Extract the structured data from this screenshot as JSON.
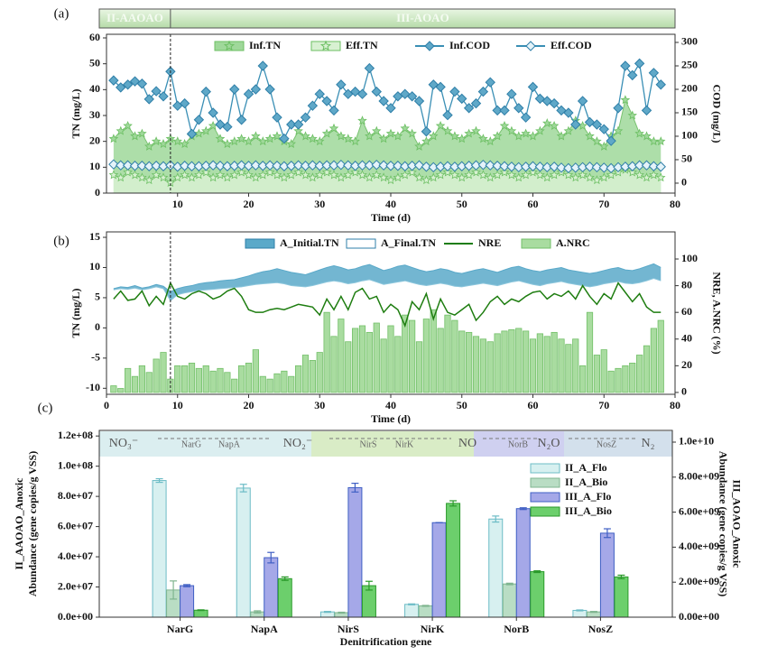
{
  "chart_data": [
    {
      "type": "line",
      "label": "(a)",
      "stages": [
        "II-AAOAO",
        "III-AOAO"
      ],
      "phase_boundary": 9,
      "xlabel": "Time (d)",
      "ylabel": "TN (mg/L)",
      "y2label": "COD (mg/L)",
      "xlim": [
        0,
        80
      ],
      "xticks": [
        10,
        20,
        30,
        40,
        50,
        60,
        70,
        80
      ],
      "ylim": [
        0,
        61.4
      ],
      "yticks": [
        0,
        10,
        20,
        30,
        40,
        50,
        60
      ],
      "y2lim": [
        -21.2,
        317.3
      ],
      "y2ticks": [
        0,
        50,
        100,
        150,
        200,
        250,
        300
      ],
      "x": [
        1,
        2,
        3,
        4,
        5,
        6,
        7,
        8,
        9,
        10,
        11,
        12,
        13,
        14,
        15,
        16,
        17,
        18,
        19,
        20,
        21,
        22,
        23,
        24,
        25,
        26,
        27,
        28,
        29,
        30,
        31,
        32,
        33,
        34,
        35,
        36,
        37,
        38,
        39,
        40,
        41,
        42,
        43,
        44,
        45,
        46,
        47,
        48,
        49,
        50,
        51,
        52,
        53,
        54,
        55,
        56,
        57,
        58,
        59,
        60,
        61,
        62,
        63,
        64,
        65,
        66,
        67,
        68,
        69,
        70,
        71,
        72,
        73,
        74,
        75,
        76,
        77,
        78
      ],
      "series": [
        {
          "name": "Inf.TN",
          "kind": "area",
          "color": "#9fd89a",
          "values": [
            21,
            24,
            26,
            22,
            23,
            18,
            20,
            19,
            21,
            20,
            19,
            22,
            23,
            24,
            26,
            21,
            19,
            20,
            21,
            20,
            22,
            20,
            21,
            22,
            20,
            19,
            24,
            22,
            21,
            20,
            23,
            25,
            22,
            21,
            20,
            28,
            22,
            24,
            21,
            23,
            22,
            25,
            23,
            18,
            20,
            22,
            26,
            24,
            22,
            21,
            23,
            24,
            21,
            20,
            22,
            26,
            24,
            22,
            23,
            22,
            24,
            27,
            26,
            22,
            24,
            28,
            26,
            22,
            20,
            18,
            22,
            24,
            36,
            30,
            23,
            22,
            20,
            20
          ]
        },
        {
          "name": "Eff.TN",
          "kind": "area",
          "color": "#d8f1d2",
          "values": [
            7,
            6,
            8,
            7,
            6,
            5,
            7,
            6,
            4,
            6,
            7,
            6,
            7,
            8,
            6,
            7,
            6,
            7,
            8,
            7,
            6,
            7,
            8,
            7,
            6,
            7,
            8,
            7,
            6,
            7,
            8,
            7,
            6,
            7,
            8,
            7,
            6,
            7,
            6,
            5,
            6,
            7,
            8,
            6,
            5,
            6,
            7,
            8,
            7,
            6,
            7,
            8,
            7,
            6,
            7,
            8,
            7,
            6,
            7,
            8,
            7,
            6,
            7,
            8,
            7,
            6,
            7,
            6,
            5,
            6,
            7,
            8,
            9,
            8,
            7,
            6,
            7,
            6
          ]
        },
        {
          "name": "Inf.COD",
          "kind": "line",
          "axis": "y2",
          "color": "#3a8fb5",
          "values": [
            219,
            204,
            210,
            217,
            212,
            179,
            196,
            185,
            238,
            165,
            170,
            105,
            135,
            195,
            150,
            125,
            120,
            200,
            135,
            190,
            200,
            250,
            200,
            140,
            95,
            125,
            125,
            140,
            165,
            190,
            175,
            155,
            210,
            190,
            195,
            190,
            245,
            195,
            175,
            160,
            185,
            190,
            185,
            175,
            110,
            210,
            205,
            145,
            195,
            180,
            160,
            170,
            195,
            215,
            155,
            155,
            190,
            160,
            140,
            205,
            180,
            175,
            170,
            155,
            150,
            125,
            175,
            130,
            125,
            115,
            90,
            160,
            250,
            230,
            255,
            155,
            235,
            210
          ]
        },
        {
          "name": "Eff.COD",
          "kind": "line",
          "axis": "y2",
          "color": "#3a8fb5",
          "values": [
            40,
            38,
            38,
            37,
            37,
            36,
            37,
            36,
            38,
            35,
            37,
            36,
            36,
            37,
            38,
            37,
            36,
            37,
            38,
            37,
            38,
            37,
            38,
            37,
            36,
            37,
            38,
            37,
            38,
            37,
            38,
            38,
            39,
            38,
            37,
            38,
            38,
            39,
            38,
            37,
            37,
            36,
            37,
            38,
            35,
            34,
            35,
            36,
            35,
            36,
            37,
            38,
            39,
            38,
            37,
            36,
            35,
            34,
            35,
            36,
            35,
            34,
            35,
            33,
            32,
            33,
            34,
            35,
            34,
            33,
            32,
            34,
            35,
            36,
            38,
            38,
            36,
            35
          ]
        }
      ]
    },
    {
      "type": "combo",
      "label": "(b)",
      "phase_boundary": 9,
      "xlabel": "Time (d)",
      "ylabel": "TN (mg/L)",
      "y2label": "NRE, A.NRC  (%)",
      "xlim": [
        0,
        80
      ],
      "xticks": [
        0,
        10,
        20,
        30,
        40,
        50,
        60,
        70,
        80
      ],
      "ylim": [
        -11,
        15.9
      ],
      "yticks": [
        -10,
        -5,
        0,
        5,
        10,
        15
      ],
      "y2lim": [
        -1.4,
        120.3
      ],
      "y2ticks": [
        0,
        20,
        40,
        60,
        80,
        100
      ],
      "x": [
        1,
        2,
        3,
        4,
        5,
        6,
        7,
        8,
        9,
        10,
        11,
        12,
        13,
        14,
        15,
        16,
        17,
        18,
        19,
        20,
        21,
        22,
        23,
        24,
        25,
        26,
        27,
        28,
        29,
        30,
        31,
        32,
        33,
        34,
        35,
        36,
        37,
        38,
        39,
        40,
        41,
        42,
        43,
        44,
        45,
        46,
        47,
        48,
        49,
        50,
        51,
        52,
        53,
        54,
        55,
        56,
        57,
        58,
        59,
        60,
        61,
        62,
        63,
        64,
        65,
        66,
        67,
        68,
        69,
        70,
        71,
        72,
        73,
        74,
        75,
        76,
        77,
        78
      ],
      "series": [
        {
          "name": "A_Initial.TN",
          "kind": "band",
          "color": "#5aa9c9",
          "values": [
            6.5,
            6.8,
            6.7,
            7.0,
            6.6,
            6.8,
            7.2,
            6.9,
            6.0,
            6.5,
            6.8,
            7.0,
            7.3,
            7.5,
            7.6,
            7.8,
            7.9,
            8.0,
            8.3,
            8.6,
            9.0,
            9.3,
            9.5,
            9.8,
            9.5,
            9.2,
            9.0,
            8.8,
            9.2,
            9.6,
            10.0,
            10.3,
            10.0,
            9.6,
            9.8,
            10.2,
            10.5,
            10.0,
            9.5,
            9.8,
            10.2,
            10.4,
            10.0,
            9.6,
            9.3,
            9.5,
            9.8,
            9.6,
            9.2,
            9.0,
            9.3,
            9.6,
            9.8,
            9.5,
            9.2,
            9.6,
            10.0,
            10.2,
            9.8,
            9.5,
            9.3,
            9.6,
            9.8,
            10.0,
            9.6,
            9.4,
            9.2,
            9.0,
            9.2,
            9.5,
            9.8,
            10.0,
            9.6,
            9.5,
            9.8,
            10.2,
            10.6,
            10.0
          ]
        },
        {
          "name": "A_Final.TN",
          "kind": "band",
          "color": "#8cc6dc",
          "values": [
            6.3,
            6.5,
            6.4,
            6.6,
            6.3,
            6.5,
            6.8,
            6.5,
            4.5,
            5.5,
            5.8,
            6.0,
            6.2,
            6.3,
            6.4,
            6.5,
            6.6,
            6.7,
            6.8,
            7.0,
            7.2,
            7.3,
            7.4,
            7.5,
            7.3,
            7.0,
            6.9,
            6.8,
            7.0,
            7.3,
            7.6,
            7.8,
            7.6,
            7.3,
            7.5,
            7.8,
            8.0,
            7.6,
            7.2,
            7.4,
            7.6,
            7.8,
            7.5,
            7.2,
            7.0,
            7.2,
            7.4,
            7.2,
            6.9,
            6.8,
            7.0,
            7.2,
            7.4,
            7.2,
            7.0,
            7.3,
            7.6,
            7.8,
            7.5,
            7.2,
            7.0,
            7.3,
            7.5,
            7.7,
            7.4,
            7.2,
            7.0,
            6.8,
            7.0,
            7.3,
            7.5,
            7.7,
            7.4,
            7.3,
            7.5,
            7.8,
            8.2,
            7.8
          ]
        },
        {
          "name": "NRE",
          "kind": "line",
          "axis": "y2",
          "color": "#1e7d10",
          "values": [
            70,
            76,
            69,
            70,
            76,
            65,
            72,
            66,
            82,
            72,
            70,
            74,
            76,
            74,
            70,
            72,
            76,
            78,
            72,
            62,
            60,
            60,
            62,
            63,
            62,
            64,
            66,
            65,
            64,
            58,
            70,
            62,
            72,
            62,
            75,
            78,
            70,
            72,
            60,
            66,
            62,
            50,
            68,
            62,
            74,
            55,
            70,
            60,
            58,
            62,
            66,
            54,
            60,
            68,
            72,
            66,
            70,
            68,
            72,
            75,
            76,
            70,
            74,
            72,
            76,
            70,
            80,
            72,
            66,
            74,
            70,
            82,
            75,
            68,
            74,
            64,
            60,
            60
          ]
        },
        {
          "name": "A.NRC",
          "kind": "bar",
          "axis": "y2",
          "color": "#a9dca0",
          "values": [
            5,
            3,
            18,
            12,
            20,
            15,
            25,
            30,
            10,
            20,
            20,
            22,
            18,
            20,
            16,
            18,
            15,
            10,
            20,
            22,
            32,
            12,
            10,
            14,
            16,
            12,
            20,
            28,
            24,
            30,
            60,
            42,
            55,
            38,
            48,
            50,
            45,
            52,
            40,
            50,
            42,
            58,
            54,
            38,
            55,
            62,
            48,
            58,
            54,
            46,
            45,
            42,
            40,
            38,
            44,
            46,
            47,
            48,
            46,
            40,
            44,
            42,
            45,
            40,
            36,
            40,
            20,
            60,
            28,
            32,
            16,
            18,
            20,
            22,
            28,
            35,
            48,
            54
          ]
        }
      ]
    },
    {
      "type": "bar",
      "label": "(c)",
      "pathway": {
        "species": [
          "NO₃⁻",
          "NO₂⁻",
          "NO",
          "N₂O",
          "N₂"
        ],
        "genes": [
          "NarG",
          "NapA",
          "NirS",
          "NirK",
          "NorB",
          "NosZ"
        ]
      },
      "xlabel": "Denitrification gene",
      "ylabel": [
        "II_AAOAO_Anoxic",
        "Abundance (gene copies/g VSS)"
      ],
      "y2label": [
        "III_AOAO_Anoxic",
        "Abundance (gene copies/g VSS)"
      ],
      "categories": [
        "NarG",
        "NapA",
        "NirS",
        "NirK",
        "NorB",
        "NosZ"
      ],
      "ylim": [
        0,
        123700000
      ],
      "yticks": [
        {
          "value": 0,
          "label": "0.0e+00"
        },
        {
          "value": 20000000,
          "label": "2.0e+07"
        },
        {
          "value": 40000000,
          "label": "4.0e+07"
        },
        {
          "value": 60000000,
          "label": "6.0e+07"
        },
        {
          "value": 80000000,
          "label": "8.0e+07"
        },
        {
          "value": 100000000,
          "label": "1.0e+08"
        },
        {
          "value": 120000000,
          "label": "1.2e+08"
        }
      ],
      "y2lim": [
        0,
        10670000000
      ],
      "y2ticks": [
        {
          "value": 0,
          "label": "0.00e+00"
        },
        {
          "value": 2000000000,
          "label": "2.00e+09"
        },
        {
          "value": 4000000000,
          "label": "4.00e+09"
        },
        {
          "value": 6000000000,
          "label": "6.00e+09"
        },
        {
          "value": 8000000000,
          "label": "8.00e+09"
        },
        {
          "value": 10000000000,
          "label": "1.0e+10"
        }
      ],
      "series": [
        {
          "name": "II_A_Flo",
          "color": "#d7f0f0",
          "stroke": "#6cbcc6",
          "values": [
            90500000,
            85500000,
            3500000,
            8500000,
            65000000,
            4500000
          ],
          "errors": [
            1200000,
            2500000,
            300000,
            300000,
            2000000,
            300000
          ]
        },
        {
          "name": "II_A_Bio",
          "color": "#b9ddc4",
          "stroke": "#7fb58f",
          "values": [
            18000000,
            3500000,
            3000000,
            7500000,
            22000000,
            3500000
          ],
          "errors": [
            6000000,
            700000,
            300000,
            300000,
            500000,
            300000
          ]
        },
        {
          "name": "III_A_Flo",
          "axis": "y2",
          "color": "#a5a8e8",
          "stroke": "#3f5fc4",
          "values": [
            1800000000,
            3400000000,
            7400000000,
            5400000000,
            6200000000,
            4800000000
          ],
          "errors": [
            60000000,
            300000000,
            250000000,
            0,
            50000000,
            250000000
          ]
        },
        {
          "name": "III_A_Bio",
          "axis": "y2",
          "color": "#6ccf6c",
          "stroke": "#2a9a2a",
          "values": [
            400000000,
            2200000000,
            1800000000,
            6500000000,
            2600000000,
            2300000000
          ],
          "errors": [
            20000000,
            100000000,
            250000000,
            150000000,
            50000000,
            100000000
          ]
        }
      ]
    }
  ]
}
